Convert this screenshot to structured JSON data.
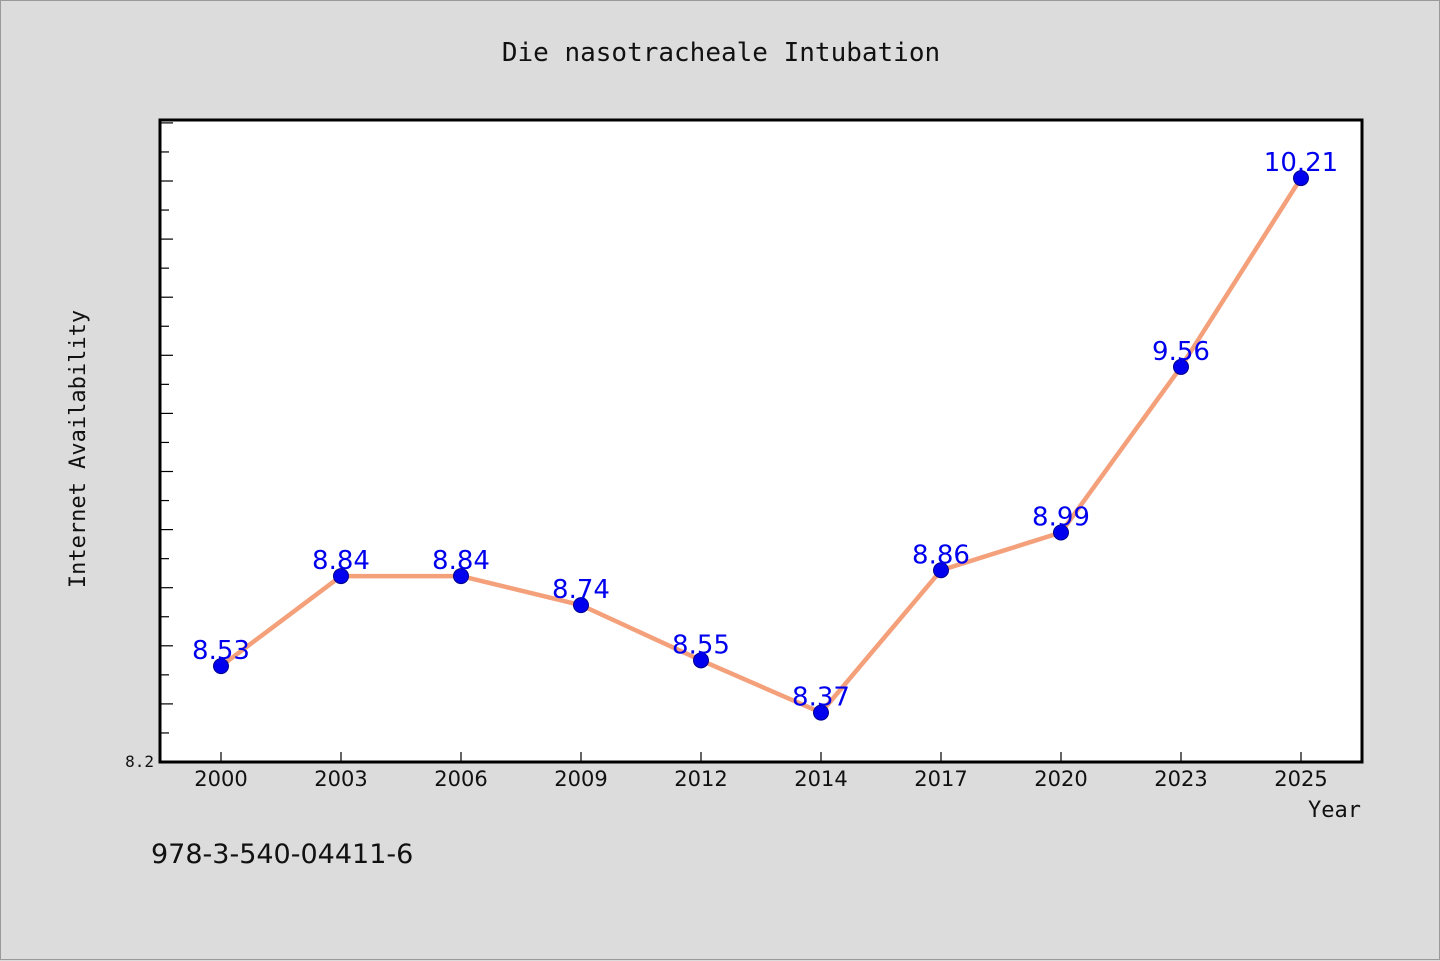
{
  "chart_data": {
    "type": "line",
    "title": "Die nasotracheale Intubation",
    "xlabel": "Year",
    "ylabel": "Internet Availability",
    "categories": [
      "2000",
      "2003",
      "2006",
      "2009",
      "2012",
      "2014",
      "2017",
      "2020",
      "2023",
      "2025"
    ],
    "series": [
      {
        "values": [
          8.53,
          8.84,
          8.84,
          8.74,
          8.55,
          8.37,
          8.86,
          8.99,
          9.56,
          10.21
        ],
        "line_color": "#f4a07a",
        "marker_color": "#0000ee",
        "label_color": "#0000ee"
      }
    ],
    "ylim": [
      8.2,
      10.41
    ],
    "yticks": [
      {
        "value": 8.2,
        "label": "8.2"
      }
    ],
    "y_minor_step": 0.1,
    "grid": false,
    "data_labels": true
  },
  "footer": {
    "text": "978-3-540-04411-6"
  },
  "colors": {
    "background": "#dcdcdc",
    "plot_background": "#ffffff",
    "axis": "#000000"
  }
}
